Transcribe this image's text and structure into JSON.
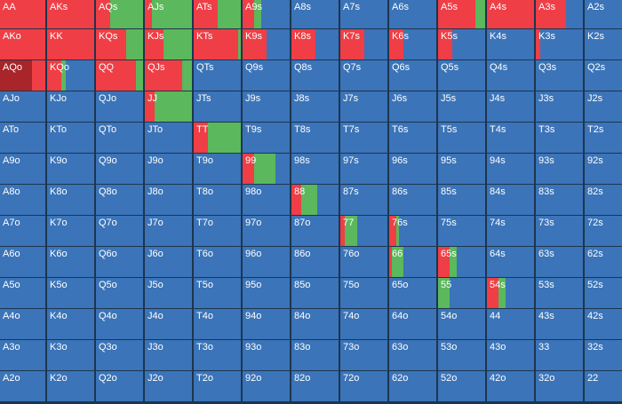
{
  "colors": {
    "fold": "#3b74b8",
    "raise": "#ef3e45",
    "call": "#5bb85c",
    "allin": "#a9252a"
  },
  "grid": {
    "ranks": [
      "A",
      "K",
      "Q",
      "J",
      "T",
      "9",
      "8",
      "7",
      "6",
      "5",
      "4",
      "3",
      "2"
    ],
    "hands": [
      [
        "AA",
        "AKs",
        "AQs",
        "AJs",
        "ATs",
        "A9s",
        "A8s",
        "A7s",
        "A6s",
        "A5s",
        "A4s",
        "A3s",
        "A2s"
      ],
      [
        "AKo",
        "KK",
        "KQs",
        "KJs",
        "KTs",
        "K9s",
        "K8s",
        "K7s",
        "K6s",
        "K5s",
        "K4s",
        "K3s",
        "K2s"
      ],
      [
        "AQo",
        "KQo",
        "QQ",
        "QJs",
        "QTs",
        "Q9s",
        "Q8s",
        "Q7s",
        "Q6s",
        "Q5s",
        "Q4s",
        "Q3s",
        "Q2s"
      ],
      [
        "AJo",
        "KJo",
        "QJo",
        "JJ",
        "JTs",
        "J9s",
        "J8s",
        "J7s",
        "J6s",
        "J5s",
        "J4s",
        "J3s",
        "J2s"
      ],
      [
        "ATo",
        "KTo",
        "QTo",
        "JTo",
        "TT",
        "T9s",
        "T8s",
        "T7s",
        "T6s",
        "T5s",
        "T4s",
        "T3s",
        "T2s"
      ],
      [
        "A9o",
        "K9o",
        "Q9o",
        "J9o",
        "T9o",
        "99",
        "98s",
        "97s",
        "96s",
        "95s",
        "94s",
        "93s",
        "92s"
      ],
      [
        "A8o",
        "K8o",
        "Q8o",
        "J8o",
        "T8o",
        "98o",
        "88",
        "87s",
        "86s",
        "85s",
        "84s",
        "83s",
        "82s"
      ],
      [
        "A7o",
        "K7o",
        "Q7o",
        "J7o",
        "T7o",
        "97o",
        "87o",
        "77",
        "76s",
        "75s",
        "74s",
        "73s",
        "72s"
      ],
      [
        "A6o",
        "K6o",
        "Q6o",
        "J6o",
        "T6o",
        "96o",
        "86o",
        "76o",
        "66",
        "65s",
        "64s",
        "63s",
        "62s"
      ],
      [
        "A5o",
        "K5o",
        "Q5o",
        "J5o",
        "T5o",
        "95o",
        "85o",
        "75o",
        "65o",
        "55",
        "54s",
        "53s",
        "52s"
      ],
      [
        "A4o",
        "K4o",
        "Q4o",
        "J4o",
        "T4o",
        "94o",
        "84o",
        "74o",
        "64o",
        "54o",
        "44",
        "43s",
        "42s"
      ],
      [
        "A3o",
        "K3o",
        "Q3o",
        "J3o",
        "T3o",
        "93o",
        "83o",
        "73o",
        "63o",
        "53o",
        "43o",
        "33",
        "32s"
      ],
      [
        "A2o",
        "K2o",
        "Q2o",
        "J2o",
        "T2o",
        "92o",
        "82o",
        "72o",
        "62o",
        "52o",
        "42o",
        "32o",
        "22"
      ]
    ],
    "strategies": {
      "AA": [
        [
          "raise",
          1.0
        ]
      ],
      "AKs": [
        [
          "raise",
          1.0
        ]
      ],
      "AQs": [
        [
          "raise",
          0.3
        ],
        [
          "call",
          0.7
        ]
      ],
      "AJs": [
        [
          "raise",
          0.15
        ],
        [
          "call",
          0.85
        ]
      ],
      "ATs": [
        [
          "raise",
          0.5
        ],
        [
          "call",
          0.5
        ]
      ],
      "A9s": [
        [
          "raise",
          0.25
        ],
        [
          "call",
          0.15
        ],
        [
          "fold",
          0.6
        ]
      ],
      "A5s": [
        [
          "raise",
          0.8
        ],
        [
          "call",
          0.2
        ]
      ],
      "A4s": [
        [
          "raise",
          1.0
        ]
      ],
      "A3s": [
        [
          "raise",
          0.65
        ],
        [
          "fold",
          0.35
        ]
      ],
      "AKo": [
        [
          "raise",
          1.0
        ]
      ],
      "KK": [
        [
          "raise",
          1.0
        ]
      ],
      "KQs": [
        [
          "raise",
          0.65
        ],
        [
          "call",
          0.35
        ]
      ],
      "KJs": [
        [
          "raise",
          0.4
        ],
        [
          "call",
          0.6
        ]
      ],
      "KTs": [
        [
          "raise",
          0.95
        ],
        [
          "call",
          0.05
        ]
      ],
      "K9s": [
        [
          "raise",
          0.5
        ],
        [
          "fold",
          0.5
        ]
      ],
      "K8s": [
        [
          "raise",
          0.5
        ],
        [
          "fold",
          0.5
        ]
      ],
      "K7s": [
        [
          "raise",
          0.5
        ],
        [
          "fold",
          0.5
        ]
      ],
      "K6s": [
        [
          "raise",
          0.3
        ],
        [
          "fold",
          0.7
        ]
      ],
      "K5s": [
        [
          "raise",
          0.3
        ],
        [
          "fold",
          0.7
        ]
      ],
      "K3s": [
        [
          "raise",
          0.1
        ],
        [
          "fold",
          0.9
        ]
      ],
      "AQo": [
        [
          "allin",
          0.7
        ],
        [
          "raise",
          0.3
        ]
      ],
      "KQo": [
        [
          "raise",
          0.3
        ],
        [
          "call",
          0.1
        ],
        [
          "fold",
          0.6
        ]
      ],
      "QQ": [
        [
          "raise",
          0.85
        ],
        [
          "call",
          0.15
        ]
      ],
      "QJs": [
        [
          "raise",
          0.8
        ],
        [
          "call",
          0.2
        ]
      ],
      "JJ": [
        [
          "raise",
          0.2
        ],
        [
          "call",
          0.8
        ]
      ],
      "TT": [
        [
          "raise",
          0.3
        ],
        [
          "call",
          0.7
        ]
      ],
      "99": [
        [
          "raise",
          0.25
        ],
        [
          "call",
          0.45
        ],
        [
          "fold",
          0.3
        ]
      ],
      "88": [
        [
          "raise",
          0.2
        ],
        [
          "call",
          0.35
        ],
        [
          "fold",
          0.45
        ]
      ],
      "77": [
        [
          "raise",
          0.1
        ],
        [
          "call",
          0.25
        ],
        [
          "fold",
          0.65
        ]
      ],
      "76s": [
        [
          "raise",
          0.15
        ],
        [
          "call",
          0.05
        ],
        [
          "fold",
          0.8
        ]
      ],
      "66": [
        [
          "raise",
          0.05
        ],
        [
          "call",
          0.25
        ],
        [
          "fold",
          0.7
        ]
      ],
      "65s": [
        [
          "raise",
          0.25
        ],
        [
          "call",
          0.15
        ],
        [
          "fold",
          0.6
        ]
      ],
      "55": [
        [
          "call",
          0.25
        ],
        [
          "fold",
          0.75
        ]
      ],
      "54s": [
        [
          "raise",
          0.25
        ],
        [
          "call",
          0.15
        ],
        [
          "fold",
          0.6
        ]
      ]
    }
  }
}
